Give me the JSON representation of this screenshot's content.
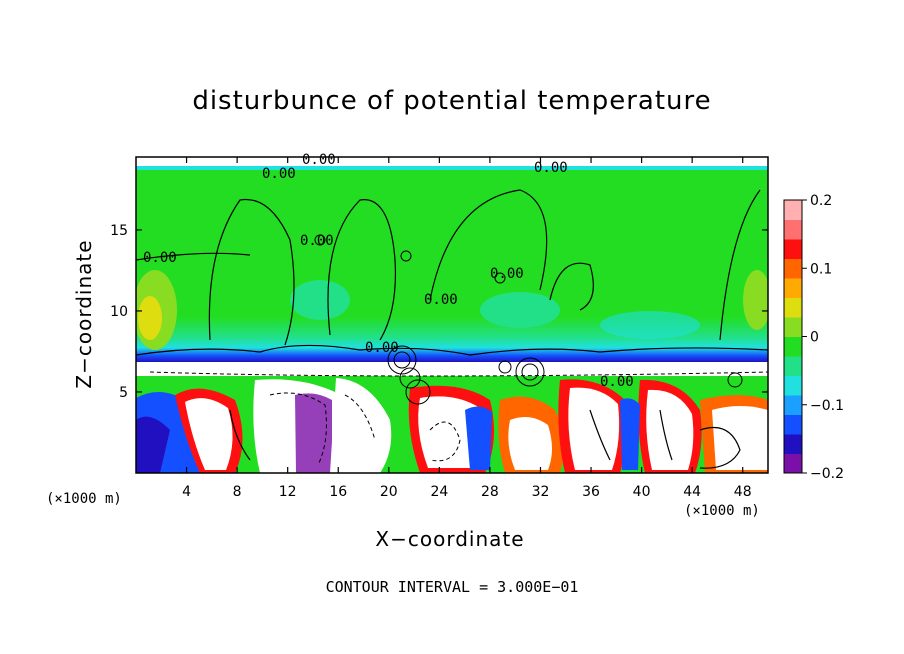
{
  "chart_data": {
    "type": "heatmap",
    "title": "disturbunce of potential temperature",
    "xlabel": "X−coordinate",
    "ylabel": "Z−coordinate",
    "x_unit": "(×1000 m)",
    "x_unit_right": "(×1000 m)",
    "xlim": [
      0,
      50
    ],
    "ylim": [
      0,
      19.5
    ],
    "x_ticks": [
      4,
      8,
      12,
      16,
      20,
      24,
      28,
      32,
      36,
      40,
      44,
      48
    ],
    "y_ticks": [
      5,
      10,
      15
    ],
    "colorbar": {
      "range": [
        -0.2,
        0.2
      ],
      "ticks": [
        "0.2",
        "0.1",
        "0",
        "−0.1",
        "−0.2"
      ],
      "tick_values": [
        0.2,
        0.1,
        0,
        -0.1,
        -0.2
      ],
      "colors": [
        "#7a10a8",
        "#2010c0",
        "#1450ff",
        "#1aa0ff",
        "#20e0e0",
        "#22e088",
        "#22dd22",
        "#88dd22",
        "#dddd10",
        "#ffaa00",
        "#ff6600",
        "#ff1010",
        "#ff7070",
        "#ffb0b0"
      ]
    },
    "contour_labels": [
      "0.00",
      "0.00",
      "0.00",
      "0.00",
      "0.00",
      "0.00",
      "0.00",
      "0.00",
      "0.00"
    ],
    "footer": "CONTOUR INTERVAL = 3.000E−01"
  }
}
